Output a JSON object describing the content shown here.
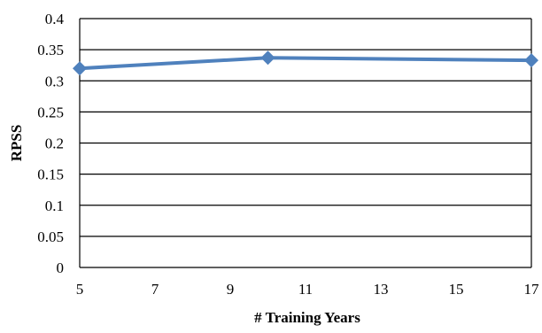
{
  "chart_data": {
    "type": "line",
    "xlabel": "# Training Years",
    "ylabel": "RPSS",
    "xlim": [
      5,
      17
    ],
    "ylim": [
      0,
      0.4
    ],
    "x_ticks": [
      "5",
      "7",
      "9",
      "11",
      "13",
      "15",
      "17"
    ],
    "y_ticks": [
      "0",
      "0.05",
      "0.1",
      "0.15",
      "0.2",
      "0.25",
      "0.3",
      "0.35",
      "0.4"
    ],
    "grid": "horizontal",
    "legend": "none",
    "series": [
      {
        "x": [
          5,
          10,
          17
        ],
        "y": [
          0.32,
          0.337,
          0.333
        ],
        "color": "#4f81bd",
        "marker": "diamond"
      }
    ]
  }
}
